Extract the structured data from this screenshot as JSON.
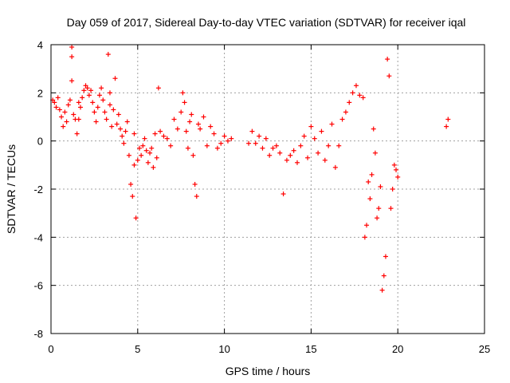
{
  "chart_data": {
    "type": "scatter",
    "title": "Day 059 of 2017, Sidereal Day-to-day VTEC variation (SDTVAR) for receiver iqal",
    "xlabel": "GPS time / hours",
    "ylabel": "SDTVAR / TECUs",
    "xlim": [
      0,
      25
    ],
    "ylim": [
      -8,
      4
    ],
    "xticks": [
      0,
      5,
      10,
      15,
      20,
      25
    ],
    "yticks": [
      -8,
      -6,
      -4,
      -2,
      0,
      2,
      4
    ],
    "xtick_labels": [
      "0",
      "5",
      "10",
      "15",
      "20",
      "25"
    ],
    "ytick_labels": [
      "-8",
      "-6",
      "-4",
      "-2",
      "0",
      "2",
      "4"
    ],
    "grid": true,
    "marker": "+",
    "color": "#ff0000",
    "series": [
      {
        "name": "SDTVAR",
        "x": [
          0.1,
          0.2,
          0.3,
          0.4,
          0.5,
          0.6,
          0.7,
          0.8,
          0.9,
          1.0,
          1.1,
          1.2,
          1.2,
          1.2,
          1.3,
          1.4,
          1.5,
          1.6,
          1.6,
          1.7,
          1.8,
          1.9,
          2.0,
          2.1,
          2.2,
          2.3,
          2.4,
          2.5,
          2.6,
          2.7,
          2.8,
          2.9,
          3.0,
          3.1,
          3.2,
          3.3,
          3.4,
          3.4,
          3.5,
          3.6,
          3.7,
          3.8,
          3.9,
          4.0,
          4.1,
          4.2,
          4.3,
          4.4,
          4.5,
          4.6,
          4.7,
          4.8,
          4.8,
          4.9,
          5.0,
          5.1,
          5.2,
          5.3,
          5.4,
          5.5,
          5.6,
          5.7,
          5.8,
          5.9,
          6.0,
          6.1,
          6.2,
          6.3,
          6.5,
          6.7,
          6.9,
          7.1,
          7.3,
          7.5,
          7.6,
          7.7,
          7.8,
          7.9,
          8.0,
          8.1,
          8.2,
          8.3,
          8.4,
          8.5,
          8.6,
          8.8,
          9.0,
          9.2,
          9.4,
          9.6,
          9.8,
          10.0,
          10.2,
          10.4,
          11.4,
          11.6,
          11.8,
          12.0,
          12.2,
          12.4,
          12.6,
          12.8,
          13.0,
          13.2,
          13.4,
          13.6,
          13.8,
          14.0,
          14.2,
          14.4,
          14.6,
          14.8,
          15.0,
          15.2,
          15.4,
          15.6,
          15.8,
          16.0,
          16.2,
          16.4,
          16.6,
          16.8,
          17.0,
          17.2,
          17.4,
          17.6,
          17.8,
          18.0,
          18.1,
          18.2,
          18.3,
          18.4,
          18.5,
          18.6,
          18.7,
          18.8,
          18.9,
          19.0,
          19.1,
          19.2,
          19.3,
          19.4,
          19.5,
          19.6,
          19.7,
          19.8,
          19.9,
          20.0,
          22.8,
          22.9
        ],
        "y": [
          1.7,
          1.6,
          1.4,
          1.8,
          1.3,
          1.0,
          0.6,
          1.2,
          0.8,
          1.5,
          1.7,
          3.9,
          3.5,
          2.5,
          1.1,
          0.9,
          0.3,
          1.6,
          0.9,
          1.4,
          1.8,
          2.1,
          2.3,
          2.2,
          1.9,
          2.1,
          1.6,
          1.2,
          0.8,
          1.4,
          1.9,
          2.2,
          1.7,
          1.2,
          0.9,
          3.6,
          1.5,
          2.0,
          0.6,
          1.3,
          2.6,
          0.7,
          1.1,
          0.5,
          0.2,
          -0.1,
          0.4,
          0.8,
          -0.6,
          -1.8,
          -2.3,
          0.3,
          -1.0,
          -3.2,
          -0.8,
          -0.3,
          -0.6,
          -0.2,
          0.1,
          -0.4,
          -0.9,
          -0.5,
          -0.3,
          -1.1,
          0.3,
          -0.7,
          2.2,
          0.4,
          0.2,
          0.1,
          -0.2,
          0.9,
          0.5,
          1.2,
          2.0,
          1.6,
          0.4,
          -0.3,
          0.8,
          1.1,
          -0.6,
          -1.8,
          -2.3,
          0.7,
          0.5,
          1.0,
          -0.2,
          0.6,
          0.3,
          -0.3,
          -0.1,
          0.2,
          0.0,
          0.1,
          -0.1,
          0.4,
          -0.1,
          0.2,
          -0.3,
          0.1,
          -0.6,
          -0.3,
          -0.2,
          -0.5,
          -2.2,
          -0.8,
          -0.6,
          -0.4,
          -0.9,
          -0.2,
          0.2,
          -0.7,
          0.6,
          0.1,
          -0.5,
          0.4,
          -0.8,
          -0.2,
          0.7,
          -1.1,
          -0.2,
          0.9,
          1.2,
          1.6,
          2.0,
          2.3,
          1.9,
          1.8,
          -4.0,
          -3.5,
          -1.7,
          -2.4,
          -1.4,
          0.5,
          -0.5,
          -3.2,
          -2.8,
          -1.9,
          -6.2,
          -5.6,
          -4.8,
          3.4,
          2.7,
          -2.8,
          -2.0,
          -1.0,
          -1.2,
          -1.5,
          0.6,
          0.9
        ]
      }
    ]
  }
}
